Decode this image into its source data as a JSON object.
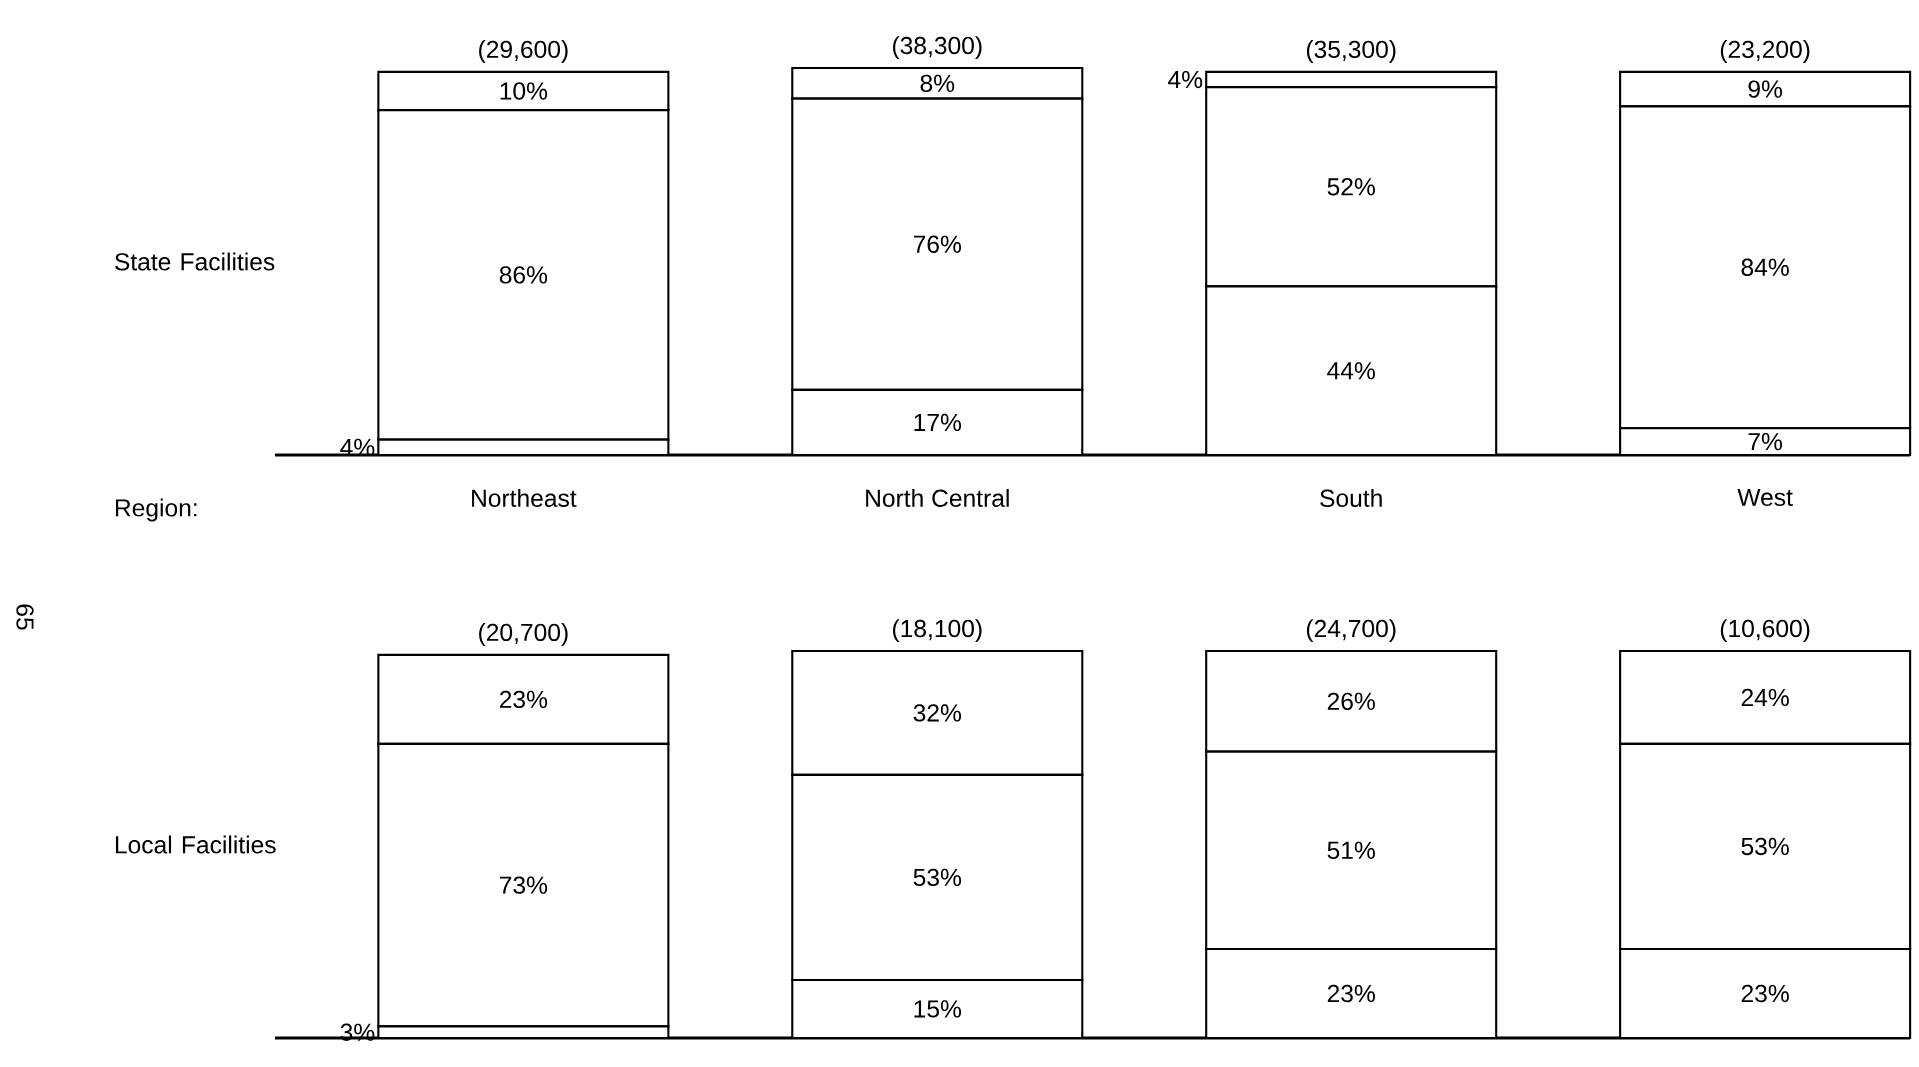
{
  "chart_data": [
    {
      "type": "bar",
      "stacked": true,
      "ylabel": "State Facilities",
      "xlabel": "Region:",
      "categories": [
        "Northeast",
        "North Central",
        "South",
        "West"
      ],
      "series": [
        {
          "color": "#ffffff",
          "values": [
            4,
            17,
            44,
            7
          ],
          "value_labels": [
            "4%",
            "17%",
            "44%",
            "7%"
          ]
        },
        {
          "color": "#ffffff",
          "values": [
            86,
            76,
            52,
            84
          ],
          "value_labels": [
            "86%",
            "76%",
            "52%",
            "84%"
          ]
        },
        {
          "color": "#ffffff",
          "values": [
            10,
            8,
            4,
            9
          ],
          "value_labels": [
            "10%",
            "8%",
            "4%",
            "9%"
          ]
        }
      ],
      "annotations": [
        "(29,600)",
        "(38,300)",
        "(35,300)",
        "(23,200)",
        "65"
      ]
    },
    {
      "type": "bar",
      "stacked": true,
      "ylabel": "Local Facilities",
      "categories": [
        null,
        null,
        null,
        null
      ],
      "series": [
        {
          "color": "#ffffff",
          "values": [
            3,
            15,
            23,
            23
          ],
          "value_labels": [
            "3%",
            "15%",
            "23%",
            "23%"
          ]
        },
        {
          "color": "#ffffff",
          "values": [
            73,
            53,
            51,
            53
          ],
          "value_labels": [
            "73%",
            "53%",
            "51%",
            "53%"
          ]
        },
        {
          "color": "#ffffff",
          "values": [
            23,
            32,
            26,
            24
          ],
          "value_labels": [
            "23%",
            "32%",
            "26%",
            "24%"
          ]
        }
      ],
      "annotations": [
        "(20,700)",
        "(18,100)",
        "(24,700)",
        "(10,600)"
      ]
    }
  ]
}
